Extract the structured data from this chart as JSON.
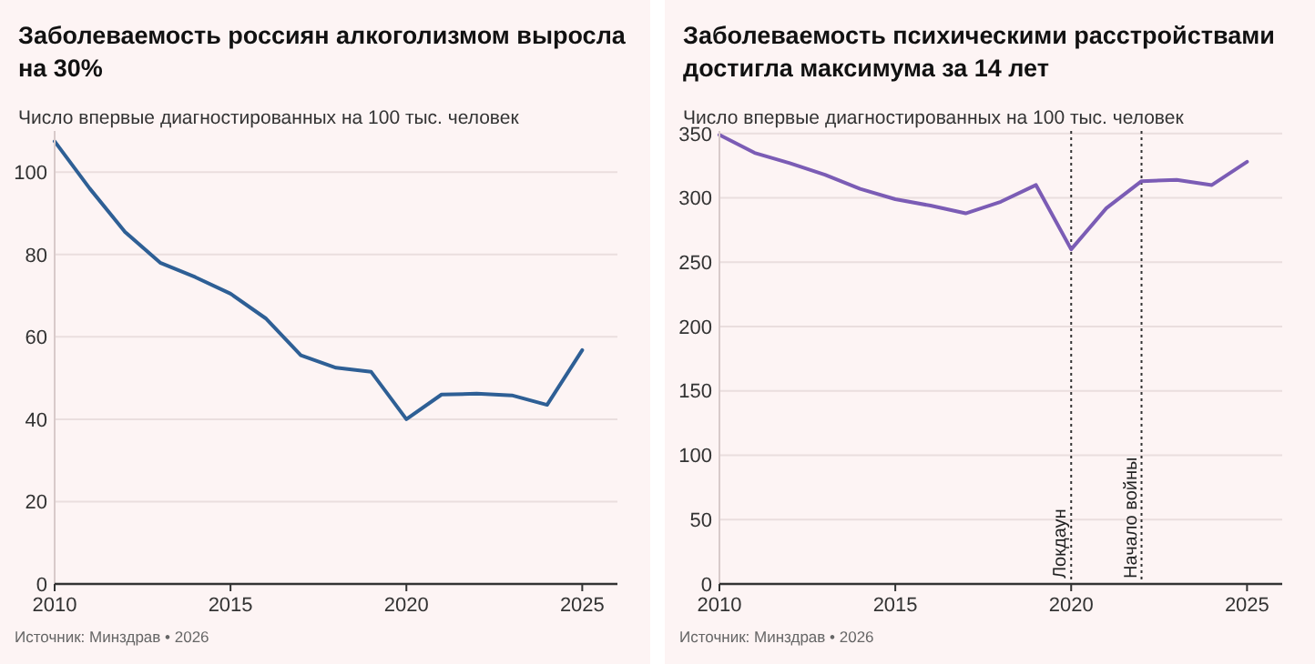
{
  "chart_data": [
    {
      "type": "line",
      "title": "Заболеваемость россиян алкоголизмом выросла на 30%",
      "subtitle": "Число впервые диагностированных на 100 тыс. человек",
      "x": [
        2010,
        2011,
        2012,
        2013,
        2014,
        2015,
        2016,
        2017,
        2018,
        2019,
        2020,
        2021,
        2022,
        2023,
        2024,
        2025
      ],
      "values": [
        107.5,
        96,
        85.5,
        78,
        74.5,
        70.5,
        64.5,
        55.5,
        52.5,
        51.5,
        40,
        46,
        46.2,
        45.8,
        43.5,
        56.8
      ],
      "color": "#2e5f95",
      "xlim": [
        2010,
        2026
      ],
      "ylim": [
        0,
        110
      ],
      "xticks": [
        2010,
        2015,
        2020,
        2025
      ],
      "yticks": [
        0,
        20,
        40,
        60,
        80,
        100
      ],
      "grid": "y",
      "annotations": [
        "Источник: Минздрав • 2026"
      ]
    },
    {
      "type": "line",
      "title": "Заболеваемость психическими расстройствами достигла максимума за 14 лет",
      "subtitle": "Число впервые диагностированных на 100 тыс. человек",
      "x": [
        2010,
        2011,
        2012,
        2013,
        2014,
        2015,
        2016,
        2017,
        2018,
        2019,
        2020,
        2021,
        2022,
        2023,
        2024,
        2025
      ],
      "values": [
        349,
        335,
        327,
        318,
        307,
        299,
        294,
        288,
        297,
        310,
        260,
        292,
        313,
        314,
        310,
        328
      ],
      "color": "#7b5cb5",
      "xlim": [
        2010,
        2026
      ],
      "ylim": [
        0,
        352
      ],
      "xticks": [
        2010,
        2015,
        2020,
        2025
      ],
      "yticks": [
        0,
        50,
        100,
        150,
        200,
        250,
        300,
        350
      ],
      "grid": "y",
      "ref_lines": [
        {
          "axis": "x",
          "value": 2020,
          "label": "Локдаун",
          "line_style": "dotted"
        },
        {
          "axis": "x",
          "value": 2022,
          "label": "Начало войны",
          "line_style": "dotted"
        }
      ],
      "annotations": [
        "Источник: Минздрав • 2026"
      ]
    }
  ]
}
